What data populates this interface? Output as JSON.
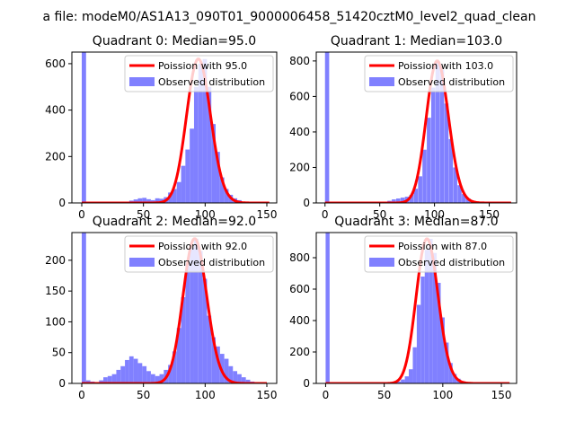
{
  "figure_title": "a file: modeM0/AS1A13_090T01_9000006458_51420cztM0_level2_quad_clean",
  "colors": {
    "hist": "#8080ff",
    "fit": "#ff0000"
  },
  "chart_data": [
    {
      "type": "bar",
      "title": "Quadrant 0: Median=95.0",
      "median": 95.0,
      "xlim": [
        -8,
        158
      ],
      "ylim": [
        0,
        650
      ],
      "xticks": [
        0,
        50,
        100,
        150
      ],
      "yticks": [
        0,
        200,
        400,
        600
      ],
      "legend_position": "upper right",
      "legend": [
        "Poission with 95.0",
        "Observed distribution"
      ],
      "bin_width": 3.5,
      "hist": {
        "x": [
          0,
          35,
          38.5,
          42,
          45.5,
          49,
          52.5,
          56,
          59.5,
          63,
          66.5,
          70,
          73.5,
          77,
          80.5,
          84,
          87.5,
          91,
          94.5,
          98,
          101.5,
          105,
          108.5,
          112,
          115.5,
          119,
          122.5,
          126,
          129.5
        ],
        "y": [
          650,
          3,
          10,
          15,
          20,
          22,
          16,
          12,
          20,
          18,
          25,
          45,
          60,
          90,
          160,
          230,
          320,
          500,
          600,
          620,
          500,
          340,
          220,
          110,
          60,
          35,
          20,
          12,
          5
        ]
      },
      "fit": {
        "mean": 95.0,
        "x_start": 0,
        "x_end": 152
      }
    },
    {
      "type": "bar",
      "title": "Quadrant 1: Median=103.0",
      "median": 103.0,
      "xlim": [
        -8,
        175
      ],
      "ylim": [
        0,
        850
      ],
      "xticks": [
        0,
        50,
        100,
        150
      ],
      "yticks": [
        0,
        200,
        400,
        600,
        800
      ],
      "legend_position": "upper right",
      "legend": [
        "Poission with 103.0",
        "Observed distribution"
      ],
      "bin_width": 3.8,
      "hist": {
        "x": [
          0,
          53,
          57,
          61,
          65,
          69,
          73,
          77,
          81,
          85,
          89,
          93,
          97,
          101,
          105,
          109,
          113,
          117,
          121,
          125,
          129,
          133,
          137
        ],
        "y": [
          850,
          5,
          12,
          20,
          25,
          30,
          35,
          45,
          80,
          150,
          300,
          480,
          650,
          800,
          750,
          560,
          360,
          200,
          100,
          50,
          25,
          12,
          5
        ]
      },
      "fit": {
        "mean": 103.0,
        "x_start": 0,
        "x_end": 170
      }
    },
    {
      "type": "bar",
      "title": "Quadrant 2: Median=92.0",
      "median": 92.0,
      "xlim": [
        -8,
        158
      ],
      "ylim": [
        0,
        245
      ],
      "xticks": [
        0,
        50,
        100,
        150
      ],
      "yticks": [
        0,
        50,
        100,
        150,
        200
      ],
      "legend_position": "upper right",
      "legend": [
        "Poission with 92.0",
        "Observed distribution"
      ],
      "bin_width": 3.5,
      "hist": {
        "x": [
          0,
          3.5,
          7,
          10.5,
          14,
          17.5,
          21,
          24.5,
          28,
          31.5,
          35,
          38.5,
          42,
          45.5,
          49,
          52.5,
          56,
          59.5,
          63,
          66.5,
          70,
          73.5,
          77,
          80.5,
          84,
          87.5,
          91,
          94.5,
          98,
          101.5,
          105,
          108.5,
          112,
          115.5,
          119,
          122.5,
          126,
          129.5,
          133,
          136.5
        ],
        "y": [
          245,
          5,
          3,
          2,
          5,
          10,
          12,
          15,
          22,
          28,
          38,
          44,
          40,
          33,
          28,
          20,
          15,
          12,
          15,
          22,
          30,
          52,
          90,
          140,
          195,
          220,
          235,
          215,
          170,
          110,
          75,
          60,
          48,
          40,
          28,
          20,
          15,
          10,
          6,
          3
        ]
      },
      "fit": {
        "mean": 92.0,
        "x_start": 0,
        "x_end": 150
      }
    },
    {
      "type": "bar",
      "title": "Quadrant 3: Median=87.0",
      "median": 87.0,
      "xlim": [
        -8,
        163
      ],
      "ylim": [
        0,
        960
      ],
      "xticks": [
        0,
        50,
        100,
        150
      ],
      "yticks": [
        0,
        200,
        400,
        600,
        800
      ],
      "legend_position": "upper right",
      "legend": [
        "Poission with 87.0",
        "Observed distribution"
      ],
      "bin_width": 3.4,
      "hist": {
        "x": [
          0,
          54,
          57.4,
          60.8,
          64.2,
          67.6,
          71,
          74.4,
          77.8,
          81.2,
          84.6,
          88,
          91.4,
          94.8,
          98.2,
          101.6,
          105,
          108.4,
          111.8,
          115.2,
          118.6,
          122
        ],
        "y": [
          960,
          5,
          8,
          12,
          25,
          45,
          90,
          230,
          500,
          680,
          850,
          920,
          830,
          640,
          420,
          260,
          130,
          60,
          30,
          15,
          8,
          4
        ]
      },
      "fit": {
        "mean": 87.0,
        "x_start": 0,
        "x_end": 157
      }
    }
  ]
}
